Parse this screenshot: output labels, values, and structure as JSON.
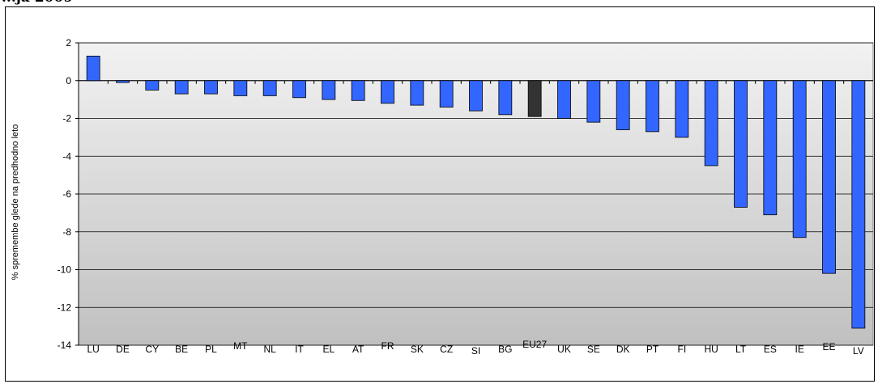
{
  "chart_data": {
    "type": "bar",
    "title": "...ja 2009",
    "ylabel": "% spremembe glede na predhodno leto",
    "ylim": [
      -14,
      2
    ],
    "yticks": [
      2,
      0,
      -2,
      -4,
      -6,
      -8,
      -10,
      -12,
      -14
    ],
    "grid": true,
    "colors": {
      "default": "#3366ff",
      "highlight": "#333333",
      "plot_bg_top": "#f2f2f2",
      "plot_bg_bottom": "#c0c0c0"
    },
    "highlight_category": "EU27",
    "categories": [
      "LU",
      "DE",
      "CY",
      "BE",
      "PL",
      "MT",
      "NL",
      "IT",
      "EL",
      "AT",
      "FR",
      "SK",
      "CZ",
      "SI",
      "BG",
      "EU27",
      "UK",
      "SE",
      "DK",
      "PT",
      "FI",
      "HU",
      "LT",
      "ES",
      "IE",
      "EE",
      "LV"
    ],
    "values": [
      1.3,
      -0.1,
      -0.5,
      -0.7,
      -0.7,
      -0.8,
      -0.8,
      -0.9,
      -1.0,
      -1.05,
      -1.2,
      -1.3,
      -1.4,
      -1.6,
      -1.8,
      -1.9,
      -2.0,
      -2.2,
      -2.6,
      -2.7,
      -3.0,
      -4.5,
      -6.7,
      -7.1,
      -8.3,
      -10.2,
      -13.1
    ]
  }
}
